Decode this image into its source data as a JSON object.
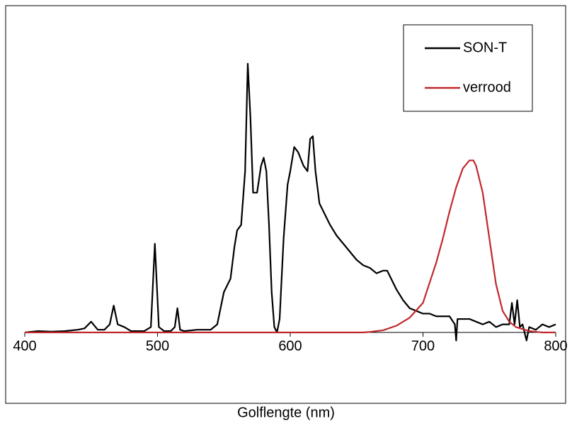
{
  "chart_data": {
    "type": "line",
    "x_label": "Golflengte (nm)",
    "xlim": [
      400,
      800
    ],
    "xticks": [
      400,
      500,
      600,
      700,
      800
    ],
    "ylim": [
      0,
      120
    ],
    "legend": "upper right",
    "series": [
      {
        "name": "SON-T",
        "color": "#000000",
        "x": [
          400,
          410,
          420,
          430,
          440,
          445,
          450,
          455,
          460,
          464,
          467,
          470,
          475,
          480,
          490,
          495,
          498,
          501,
          505,
          510,
          513,
          515,
          517,
          520,
          530,
          540,
          545,
          550,
          555,
          558,
          560,
          563,
          566,
          568,
          570,
          572,
          575,
          578,
          580,
          582,
          584,
          586,
          588,
          590,
          592,
          595,
          598,
          600,
          603,
          606,
          610,
          613,
          615,
          617,
          619,
          622,
          625,
          630,
          635,
          640,
          645,
          650,
          655,
          660,
          665,
          670,
          673,
          676,
          680,
          685,
          690,
          695,
          700,
          705,
          710,
          715,
          720,
          724,
          725,
          726,
          730,
          735,
          740,
          745,
          750,
          755,
          760,
          765,
          767,
          769,
          771,
          773,
          775,
          778,
          780,
          785,
          790,
          795,
          800
        ],
        "values": [
          0,
          0.5,
          0.3,
          0.5,
          1,
          1.5,
          4,
          1,
          1,
          3,
          10,
          3,
          2,
          0.5,
          0.5,
          2,
          33,
          2,
          0.5,
          0.5,
          2,
          9,
          1,
          0.5,
          1,
          1,
          3,
          15,
          20,
          32,
          38,
          40,
          60,
          100,
          80,
          52,
          52,
          62,
          65,
          60,
          40,
          15,
          2,
          0,
          5,
          35,
          55,
          60,
          69,
          67,
          62,
          60,
          72,
          73,
          60,
          48,
          45,
          40,
          36,
          33,
          30,
          27,
          25,
          24,
          22,
          23,
          23,
          20,
          16,
          12,
          9,
          8,
          7,
          7,
          6,
          6,
          6,
          3,
          -3,
          5,
          5,
          5,
          4,
          3,
          4,
          2,
          3,
          3,
          11,
          3,
          12,
          2,
          3,
          -3,
          2,
          1,
          3,
          2,
          3
        ]
      },
      {
        "name": "verrood",
        "color": "#c0282d",
        "x": [
          400,
          500,
          600,
          655,
          660,
          670,
          680,
          690,
          700,
          710,
          715,
          720,
          725,
          730,
          735,
          738,
          740,
          745,
          750,
          755,
          760,
          765,
          770,
          780,
          790,
          800
        ],
        "values": [
          0,
          0,
          0,
          0,
          0.2,
          0.8,
          2.5,
          5.5,
          11,
          26,
          35,
          45,
          54,
          61,
          64,
          64,
          62,
          52,
          35,
          18,
          8,
          4,
          2,
          0.5,
          0,
          0
        ]
      }
    ]
  }
}
